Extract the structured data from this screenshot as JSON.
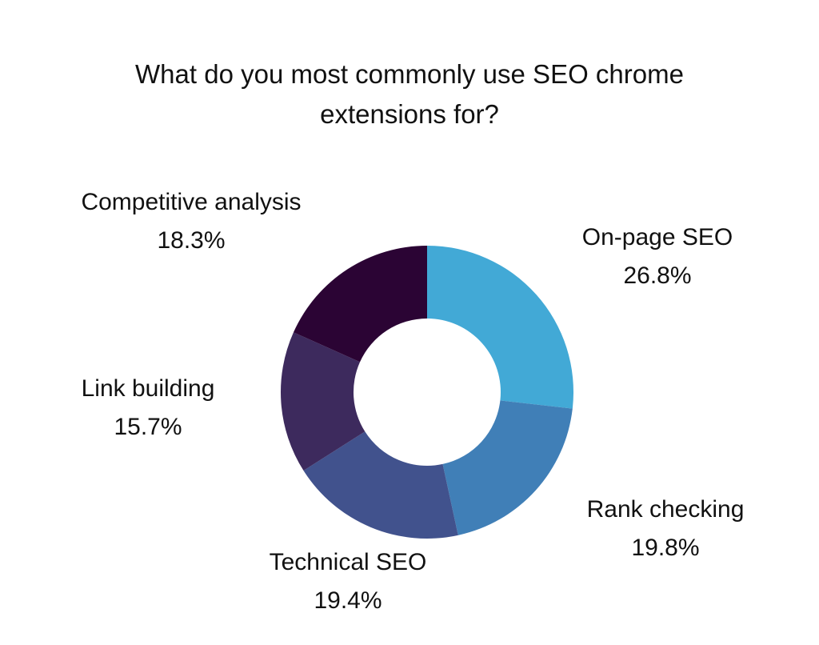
{
  "chart_data": {
    "type": "pie",
    "donut": true,
    "title_lines": [
      "What do you most commonly use SEO chrome",
      "extensions for?"
    ],
    "categories": [
      "On-page SEO",
      "Rank checking",
      "Technical SEO",
      "Link building",
      "Competitive analysis"
    ],
    "values": [
      26.8,
      19.8,
      19.4,
      15.7,
      18.3
    ],
    "value_labels": [
      "26.8%",
      "19.8%",
      "19.4%",
      "15.7%",
      "18.3%"
    ],
    "colors": [
      "#42a9d6",
      "#407fb7",
      "#41528d",
      "#3d2a5d",
      "#2b0434"
    ],
    "start": "12 o'clock, clockwise"
  }
}
